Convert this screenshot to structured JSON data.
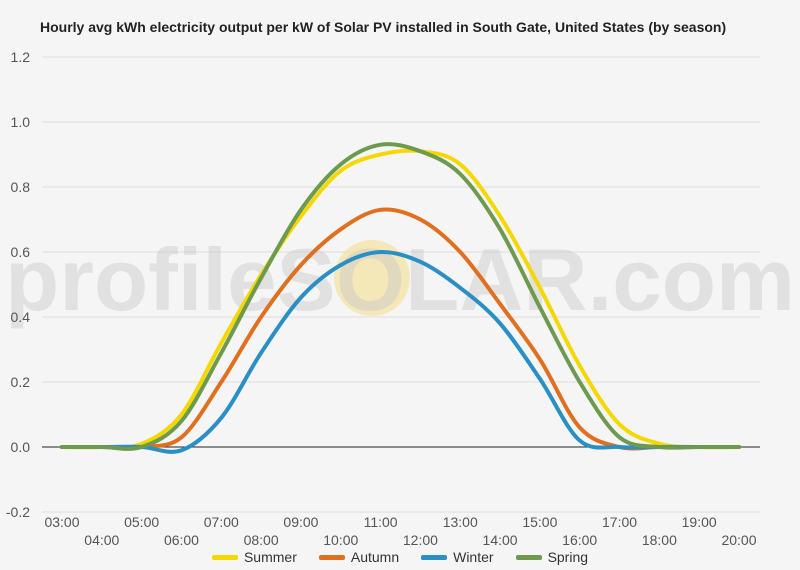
{
  "chart_data": {
    "type": "line",
    "title": "Hourly avg kWh electricity output per kW of Solar PV installed in South Gate, United States (by season)",
    "xlabel": "",
    "ylabel": "",
    "x": [
      "03:00",
      "04:00",
      "05:00",
      "06:00",
      "07:00",
      "08:00",
      "09:00",
      "10:00",
      "11:00",
      "12:00",
      "13:00",
      "14:00",
      "15:00",
      "16:00",
      "17:00",
      "18:00",
      "19:00",
      "20:00"
    ],
    "x_tick_labels_top": [
      "03:00",
      "05:00",
      "07:00",
      "09:00",
      "11:00",
      "13:00",
      "15:00",
      "17:00",
      "19:00"
    ],
    "x_tick_labels_bottom": [
      "04:00",
      "06:00",
      "08:00",
      "10:00",
      "12:00",
      "14:00",
      "16:00",
      "18:00",
      "20:00"
    ],
    "ylim": [
      -0.2,
      1.2
    ],
    "yticks": [
      -0.2,
      0.0,
      0.2,
      0.4,
      0.6,
      0.8,
      1.0,
      1.2
    ],
    "ytick_labels": [
      "-0.2",
      "0.0",
      "0.2",
      "0.4",
      "0.6",
      "0.8",
      "1.0",
      "1.2"
    ],
    "grid": true,
    "legend_position": "bottom",
    "series": [
      {
        "name": "Summer",
        "color": "#f5d800",
        "values": [
          0,
          0,
          0.01,
          0.1,
          0.32,
          0.53,
          0.71,
          0.85,
          0.9,
          0.91,
          0.87,
          0.71,
          0.49,
          0.25,
          0.07,
          0.01,
          0,
          0
        ]
      },
      {
        "name": "Autumn",
        "color": "#e07020",
        "values": [
          0,
          0,
          0,
          0.03,
          0.2,
          0.4,
          0.56,
          0.67,
          0.73,
          0.7,
          0.6,
          0.44,
          0.27,
          0.06,
          0,
          0,
          0,
          0
        ]
      },
      {
        "name": "Winter",
        "color": "#2a8fc4",
        "values": [
          0,
          0,
          0,
          -0.01,
          0.09,
          0.29,
          0.46,
          0.56,
          0.6,
          0.57,
          0.49,
          0.38,
          0.21,
          0.02,
          0,
          0,
          0,
          0
        ]
      },
      {
        "name": "Spring",
        "color": "#6d9a4e",
        "values": [
          0,
          0,
          0,
          0.08,
          0.29,
          0.52,
          0.73,
          0.87,
          0.93,
          0.91,
          0.84,
          0.67,
          0.43,
          0.2,
          0.03,
          0,
          0,
          0
        ]
      }
    ],
    "watermark": "profileSOLAR.com"
  }
}
